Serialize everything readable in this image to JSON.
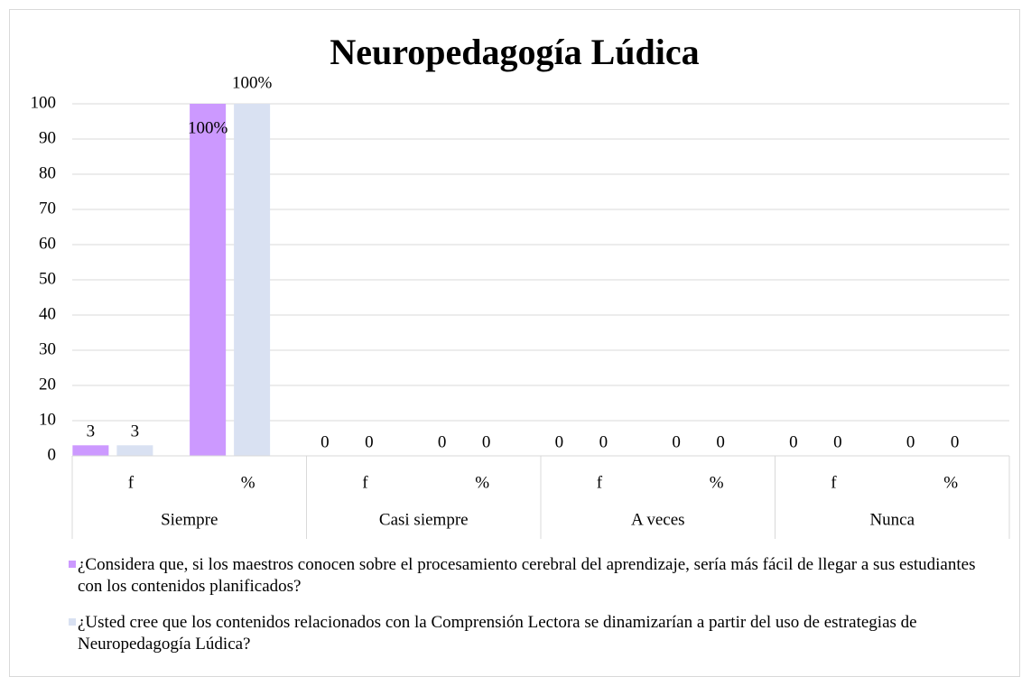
{
  "chart_data": {
    "type": "bar",
    "title": "Neuropedagogía Lúdica",
    "categories": [
      "f",
      "%",
      "f",
      "%",
      "f",
      "%",
      "f",
      "%"
    ],
    "groups": [
      "Siempre",
      "Casi siempre",
      "A veces",
      "Nunca"
    ],
    "series": [
      {
        "name": "¿Considera que, si los maestros conocen sobre el procesamiento cerebral del aprendizaje, sería más fácil de llegar a sus estudiantes con los contenidos planificados?",
        "color": "#cc99ff",
        "values": [
          3,
          100,
          0,
          0,
          0,
          0,
          0,
          0
        ],
        "value_labels": [
          "3",
          "100%",
          "0",
          "0",
          "0",
          "0",
          "0",
          "0"
        ]
      },
      {
        "name": "¿Usted cree que los contenidos relacionados con la Comprensión Lectora se dinamizarían a partir del uso de estrategias de Neuropedagogía Lúdica?",
        "color": "#d9e1f2",
        "values": [
          3,
          100,
          0,
          0,
          0,
          0,
          0,
          0
        ],
        "value_labels": [
          "3",
          "100%",
          "0",
          "0",
          "0",
          "0",
          "0",
          "0"
        ]
      }
    ],
    "ylim": [
      0,
      100
    ],
    "yticks": [
      0,
      10,
      20,
      30,
      40,
      50,
      60,
      70,
      80,
      90,
      100
    ],
    "grid": true,
    "legend": "bottom"
  }
}
